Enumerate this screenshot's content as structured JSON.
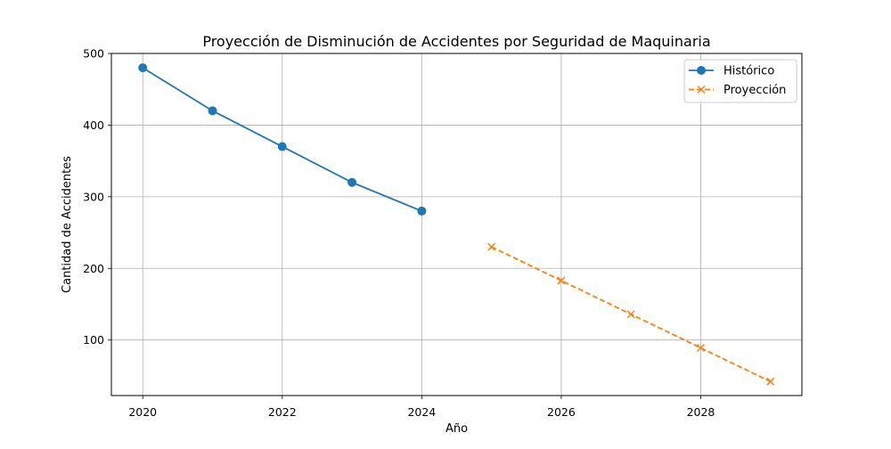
{
  "chart_data": {
    "type": "line",
    "title": "Proyección de Disminución de Accidentes por Seguridad de Maquinaria",
    "xlabel": "Año",
    "ylabel": "Cantidad de Accidentes",
    "xlim": [
      2019.55,
      2029.45
    ],
    "ylim": [
      22.5,
      500
    ],
    "grid": true,
    "legend_position": "top-right",
    "x_ticks": [
      2020,
      2022,
      2024,
      2026,
      2028
    ],
    "y_ticks": [
      100,
      200,
      300,
      400,
      500
    ],
    "series": [
      {
        "name": "Histórico",
        "color": "#1f77b4",
        "marker": "circle",
        "line_style": "solid",
        "x": [
          2020,
          2021,
          2022,
          2023,
          2024
        ],
        "y": [
          480,
          420,
          370,
          320,
          280
        ]
      },
      {
        "name": "Proyección",
        "color": "#ff7f0e",
        "marker": "x",
        "line_style": "dashed",
        "x": [
          2025,
          2026,
          2027,
          2028,
          2029
        ],
        "y": [
          230,
          183,
          136,
          89,
          42
        ]
      }
    ]
  }
}
